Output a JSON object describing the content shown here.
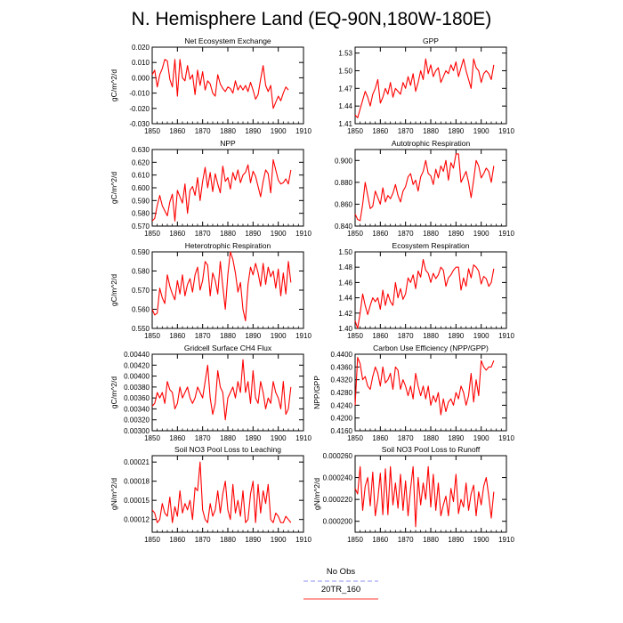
{
  "figure_title": "N. Hemisphere Land (EQ-90N,180W-180E)",
  "legend": {
    "entries": [
      {
        "label": "No Obs",
        "color": "#8c8cf0",
        "dash": "dashed"
      },
      {
        "label": "20TR_160",
        "color": "#ff3333",
        "dash": "solid"
      }
    ]
  },
  "chart_data": [
    {
      "type": "line",
      "title": "Net Ecosystem Exchange",
      "ylabel": "gC/m^2/d",
      "xlabel": "",
      "xlim": [
        1850,
        1910
      ],
      "xticks": [
        1850,
        1860,
        1870,
        1880,
        1890,
        1900,
        1910
      ],
      "ylim": [
        -0.03,
        0.02
      ],
      "yticks": [
        0.02,
        0.01,
        0.0,
        -0.01,
        -0.02,
        -0.03
      ],
      "ytick_labels": [
        "0.020",
        "0.010",
        "0.000",
        "-0.010",
        "-0.020",
        "-0.030"
      ],
      "series": [
        {
          "name": "20TR_160",
          "color": "#ff0000",
          "x_start": 1850,
          "values": [
            0.002,
            0.005,
            -0.006,
            0.002,
            0.006,
            0.012,
            0.011,
            -0.001,
            -0.006,
            0.012,
            -0.012,
            0.012,
            0.0,
            -0.002,
            0.008,
            -0.001,
            0.002,
            -0.011,
            0.005,
            -0.005,
            0.004,
            -0.008,
            -0.002,
            -0.004,
            -0.01,
            -0.012,
            0.002,
            -0.004,
            -0.007,
            -0.009,
            -0.006,
            -0.007,
            -0.01,
            -0.002,
            -0.008,
            -0.005,
            -0.008,
            -0.005,
            -0.009,
            -0.003,
            -0.008,
            -0.014,
            -0.011,
            -0.001,
            0.008,
            -0.005,
            -0.009,
            -0.005,
            -0.02,
            -0.016,
            -0.012,
            -0.015,
            -0.01,
            -0.006,
            -0.008
          ]
        }
      ]
    },
    {
      "type": "line",
      "title": "GPP",
      "ylabel": "",
      "xlabel": "",
      "xlim": [
        1850,
        1910
      ],
      "xticks": [
        1850,
        1860,
        1870,
        1880,
        1890,
        1900,
        1910
      ],
      "ylim": [
        1.41,
        1.54
      ],
      "yticks": [
        1.53,
        1.5,
        1.47,
        1.44,
        1.41
      ],
      "ytick_labels": [
        "1.53",
        "1.50",
        "1.47",
        "1.44",
        "1.41"
      ],
      "series": [
        {
          "name": "20TR_160",
          "color": "#ff0000",
          "x_start": 1850,
          "values": [
            1.425,
            1.42,
            1.435,
            1.45,
            1.465,
            1.455,
            1.44,
            1.46,
            1.47,
            1.485,
            1.445,
            1.455,
            1.47,
            1.46,
            1.48,
            1.455,
            1.47,
            1.465,
            1.46,
            1.48,
            1.47,
            1.49,
            1.475,
            1.495,
            1.465,
            1.48,
            1.5,
            1.485,
            1.52,
            1.495,
            1.51,
            1.49,
            1.5,
            1.505,
            1.48,
            1.49,
            1.5,
            1.495,
            1.51,
            1.5,
            1.515,
            1.49,
            1.505,
            1.52,
            1.5,
            1.485,
            1.47,
            1.52,
            1.505,
            1.5,
            1.48,
            1.495,
            1.5,
            1.495,
            1.485,
            1.51
          ]
        }
      ]
    },
    {
      "type": "line",
      "title": "NPP",
      "ylabel": "gC/m^2/d",
      "xlabel": "",
      "xlim": [
        1850,
        1910
      ],
      "xticks": [
        1850,
        1860,
        1870,
        1880,
        1890,
        1900,
        1910
      ],
      "ylim": [
        0.57,
        0.63
      ],
      "yticks": [
        0.63,
        0.62,
        0.61,
        0.6,
        0.59,
        0.58,
        0.57
      ],
      "ytick_labels": [
        "0.630",
        "0.620",
        "0.610",
        "0.600",
        "0.590",
        "0.580",
        "0.570"
      ],
      "series": [
        {
          "name": "20TR_160",
          "color": "#ff0000",
          "x_start": 1850,
          "values": [
            0.574,
            0.576,
            0.586,
            0.594,
            0.586,
            0.582,
            0.578,
            0.589,
            0.595,
            0.574,
            0.598,
            0.593,
            0.588,
            0.603,
            0.58,
            0.598,
            0.601,
            0.594,
            0.608,
            0.59,
            0.605,
            0.616,
            0.6,
            0.612,
            0.597,
            0.611,
            0.603,
            0.596,
            0.617,
            0.605,
            0.608,
            0.599,
            0.612,
            0.606,
            0.614,
            0.604,
            0.61,
            0.612,
            0.618,
            0.604,
            0.613,
            0.609,
            0.601,
            0.593,
            0.605,
            0.614,
            0.611,
            0.596,
            0.622,
            0.614,
            0.606,
            0.603,
            0.604,
            0.607,
            0.603,
            0.614
          ]
        }
      ]
    },
    {
      "type": "line",
      "title": "Autotrophic Respiration",
      "ylabel": "",
      "xlabel": "",
      "xlim": [
        1850,
        1910
      ],
      "xticks": [
        1850,
        1860,
        1870,
        1880,
        1890,
        1900,
        1910
      ],
      "ylim": [
        0.84,
        0.91
      ],
      "yticks": [
        0.9,
        0.88,
        0.86,
        0.84
      ],
      "ytick_labels": [
        "0.900",
        "0.880",
        "0.860",
        "0.840"
      ],
      "series": [
        {
          "name": "20TR_160",
          "color": "#ff0000",
          "x_start": 1850,
          "values": [
            0.851,
            0.846,
            0.845,
            0.86,
            0.88,
            0.868,
            0.856,
            0.858,
            0.872,
            0.866,
            0.86,
            0.875,
            0.862,
            0.868,
            0.865,
            0.87,
            0.878,
            0.868,
            0.862,
            0.872,
            0.876,
            0.885,
            0.888,
            0.878,
            0.882,
            0.872,
            0.885,
            0.89,
            0.9,
            0.888,
            0.886,
            0.878,
            0.892,
            0.884,
            0.895,
            0.89,
            0.9,
            0.882,
            0.898,
            0.893,
            0.906,
            0.906,
            0.88,
            0.885,
            0.89,
            0.88,
            0.866,
            0.882,
            0.9,
            0.895,
            0.884,
            0.888,
            0.893,
            0.89,
            0.88,
            0.895
          ]
        }
      ]
    },
    {
      "type": "line",
      "title": "Heterotrophic Respiration",
      "ylabel": "gC/m^2/d",
      "xlabel": "",
      "xlim": [
        1850,
        1910
      ],
      "xticks": [
        1850,
        1860,
        1870,
        1880,
        1890,
        1900,
        1910
      ],
      "ylim": [
        0.55,
        0.59
      ],
      "yticks": [
        0.59,
        0.58,
        0.57,
        0.56,
        0.55
      ],
      "ytick_labels": [
        "0.590",
        "0.580",
        "0.570",
        "0.560",
        "0.550"
      ],
      "series": [
        {
          "name": "20TR_160",
          "color": "#ff0000",
          "x_start": 1850,
          "values": [
            0.56,
            0.557,
            0.558,
            0.571,
            0.566,
            0.563,
            0.578,
            0.572,
            0.568,
            0.565,
            0.575,
            0.568,
            0.578,
            0.567,
            0.573,
            0.576,
            0.569,
            0.578,
            0.582,
            0.57,
            0.575,
            0.585,
            0.583,
            0.567,
            0.579,
            0.575,
            0.568,
            0.585,
            0.572,
            0.56,
            0.578,
            0.59,
            0.586,
            0.579,
            0.569,
            0.574,
            0.56,
            0.554,
            0.573,
            0.582,
            0.578,
            0.584,
            0.579,
            0.572,
            0.584,
            0.573,
            0.582,
            0.577,
            0.58,
            0.571,
            0.581,
            0.567,
            0.579,
            0.568,
            0.585,
            0.574
          ]
        }
      ]
    },
    {
      "type": "line",
      "title": "Ecosystem Respiration",
      "ylabel": "",
      "xlabel": "",
      "xlim": [
        1850,
        1910
      ],
      "xticks": [
        1850,
        1860,
        1870,
        1880,
        1890,
        1900,
        1910
      ],
      "ylim": [
        1.4,
        1.5
      ],
      "yticks": [
        1.5,
        1.48,
        1.46,
        1.44,
        1.42,
        1.4
      ],
      "ytick_labels": [
        "1.50",
        "1.48",
        "1.46",
        "1.44",
        "1.42",
        "1.40"
      ],
      "series": [
        {
          "name": "20TR_160",
          "color": "#ff0000",
          "x_start": 1850,
          "values": [
            1.41,
            1.4,
            1.42,
            1.445,
            1.43,
            1.418,
            1.43,
            1.44,
            1.435,
            1.44,
            1.425,
            1.45,
            1.43,
            1.445,
            1.435,
            1.43,
            1.46,
            1.44,
            1.452,
            1.438,
            1.445,
            1.466,
            1.46,
            1.47,
            1.452,
            1.475,
            1.467,
            1.49,
            1.476,
            1.472,
            1.46,
            1.472,
            1.465,
            1.47,
            1.48,
            1.476,
            1.455,
            1.466,
            1.47,
            1.476,
            1.48,
            1.48,
            1.45,
            1.466,
            1.455,
            1.478,
            1.466,
            1.483,
            1.48,
            1.475,
            1.458,
            1.468,
            1.465,
            1.455,
            1.46,
            1.478
          ]
        }
      ]
    },
    {
      "type": "line",
      "title": "Gridcell Surface CH4 Flux",
      "ylabel": "gC/m^2/d",
      "xlabel": "",
      "xlim": [
        1850,
        1910
      ],
      "xticks": [
        1850,
        1860,
        1870,
        1880,
        1890,
        1900,
        1910
      ],
      "ylim": [
        0.003,
        0.0044
      ],
      "yticks": [
        0.0044,
        0.0042,
        0.004,
        0.0038,
        0.0036,
        0.0034,
        0.0032,
        0.003
      ],
      "ytick_labels": [
        "0.00440",
        "0.00420",
        "0.00400",
        "0.00380",
        "0.00360",
        "0.00340",
        "0.00320",
        "0.00300"
      ],
      "series": [
        {
          "name": "20TR_160",
          "color": "#ff0000",
          "x_start": 1850,
          "values": [
            0.00345,
            0.0035,
            0.0037,
            0.0036,
            0.0037,
            0.0035,
            0.0039,
            0.00375,
            0.0037,
            0.0034,
            0.0035,
            0.0038,
            0.0036,
            0.0037,
            0.0038,
            0.0036,
            0.0035,
            0.0036,
            0.0038,
            0.0037,
            0.0036,
            0.0039,
            0.0042,
            0.0036,
            0.0033,
            0.0035,
            0.0041,
            0.0038,
            0.0037,
            0.0032,
            0.0036,
            0.0037,
            0.0038,
            0.0036,
            0.0039,
            0.0037,
            0.0043,
            0.0037,
            0.0039,
            0.0035,
            0.0041,
            0.0036,
            0.0035,
            0.0039,
            0.0037,
            0.0034,
            0.0036,
            0.0035,
            0.0039,
            0.0037,
            0.0036,
            0.0034,
            0.0039,
            0.0033,
            0.0034,
            0.0038
          ]
        }
      ]
    },
    {
      "type": "line",
      "title": "Carbon Use Efficiency (NPP/GPP)",
      "ylabel": "NPP/GPP",
      "xlabel": "",
      "xlim": [
        1850,
        1910
      ],
      "xticks": [
        1850,
        1860,
        1870,
        1880,
        1890,
        1900,
        1910
      ],
      "ylim": [
        0.416,
        0.44
      ],
      "yticks": [
        0.44,
        0.436,
        0.432,
        0.428,
        0.424,
        0.42,
        0.416
      ],
      "ytick_labels": [
        "0.4400",
        "0.4360",
        "0.4320",
        "0.4280",
        "0.4240",
        "0.4200",
        "0.4160"
      ],
      "series": [
        {
          "name": "20TR_160",
          "color": "#ff0000",
          "x_start": 1850,
          "values": [
            0.424,
            0.439,
            0.437,
            0.432,
            0.433,
            0.43,
            0.429,
            0.433,
            0.436,
            0.434,
            0.43,
            0.436,
            0.431,
            0.432,
            0.434,
            0.429,
            0.436,
            0.435,
            0.429,
            0.432,
            0.43,
            0.427,
            0.43,
            0.426,
            0.434,
            0.43,
            0.427,
            0.43,
            0.426,
            0.43,
            0.424,
            0.427,
            0.425,
            0.428,
            0.421,
            0.426,
            0.422,
            0.425,
            0.426,
            0.424,
            0.428,
            0.426,
            0.43,
            0.428,
            0.424,
            0.427,
            0.434,
            0.425,
            0.432,
            0.427,
            0.438,
            0.436,
            0.435,
            0.436,
            0.436,
            0.438
          ]
        }
      ]
    },
    {
      "type": "line",
      "title": "Soil NO3 Pool Loss to Leaching",
      "ylabel": "gN/m^2/d",
      "xlabel": "",
      "xlim": [
        1850,
        1910
      ],
      "xticks": [
        1850,
        1860,
        1870,
        1880,
        1890,
        1900,
        1910
      ],
      "ylim": [
        0.0001,
        0.00022
      ],
      "yticks": [
        0.00021,
        0.00018,
        0.00015,
        0.00012
      ],
      "ytick_labels": [
        "0.00021",
        "0.00018",
        "0.00015",
        "0.00012"
      ],
      "series": [
        {
          "name": "20TR_160",
          "color": "#ff0000",
          "x_start": 1850,
          "values": [
            0.000135,
            0.00013,
            0.000115,
            0.00012,
            0.000145,
            0.00013,
            0.000125,
            0.000155,
            0.000115,
            0.00014,
            0.000125,
            0.000165,
            0.00013,
            0.000145,
            0.000135,
            0.00015,
            0.00012,
            0.00017,
            0.000165,
            0.00021,
            0.000135,
            0.00012,
            0.000115,
            0.000145,
            0.000125,
            0.000135,
            0.000165,
            0.00013,
            0.00016,
            0.00018,
            0.000135,
            0.00012,
            0.000175,
            0.00013,
            0.00015,
            0.000125,
            0.000165,
            0.000115,
            0.00012,
            0.00016,
            0.00018,
            0.000115,
            0.000175,
            0.00013,
            0.000165,
            0.000145,
            0.000175,
            0.00012,
            0.000115,
            0.00013,
            0.000125,
            0.000115,
            0.000115,
            0.000125,
            0.00012,
            0.000115
          ]
        }
      ]
    },
    {
      "type": "line",
      "title": "Soil NO3 Pool Loss to Runoff",
      "ylabel": "gN/m^2/d",
      "xlabel": "",
      "xlim": [
        1850,
        1910
      ],
      "xticks": [
        1850,
        1860,
        1870,
        1880,
        1890,
        1900,
        1910
      ],
      "ylim": [
        0.00019,
        0.00026
      ],
      "yticks": [
        0.00026,
        0.00024,
        0.00022,
        0.0002
      ],
      "ytick_labels": [
        "0.000260",
        "0.000240",
        "0.000220",
        "0.000200"
      ],
      "series": [
        {
          "name": "20TR_160",
          "color": "#ff0000",
          "x_start": 1850,
          "values": [
            0.00023,
            0.000225,
            0.00025,
            0.00021,
            0.000232,
            0.00024,
            0.000214,
            0.000245,
            0.000205,
            0.00022,
            0.000244,
            0.000206,
            0.000248,
            0.000206,
            0.00025,
            0.000215,
            0.000235,
            0.000212,
            0.000243,
            0.00021,
            0.000237,
            0.000205,
            0.00023,
            0.00025,
            0.000195,
            0.00024,
            0.000215,
            0.000235,
            0.00022,
            0.00025,
            0.000213,
            0.000243,
            0.00021,
            0.000235,
            0.000205,
            0.000215,
            0.000223,
            0.000205,
            0.00023,
            0.000218,
            0.000243,
            0.000207,
            0.00022,
            0.000213,
            0.000235,
            0.00021,
            0.000225,
            0.000233,
            0.000205,
            0.000227,
            0.000215,
            0.000232,
            0.00024,
            0.000223,
            0.000203,
            0.000227
          ]
        }
      ]
    }
  ]
}
